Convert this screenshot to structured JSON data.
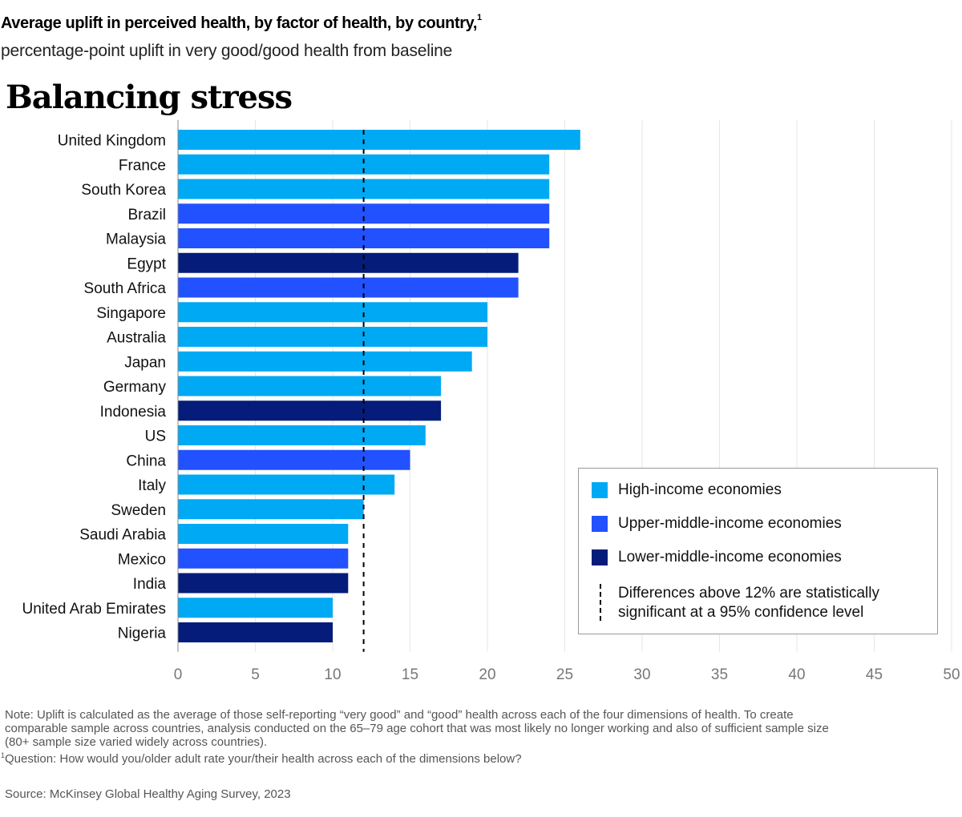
{
  "header": {
    "title": "Average uplift in perceived health, by factor of health, by country,",
    "title_footnote": "1",
    "subtitle": "percentage-point uplift in very good/good health from baseline",
    "heading": "Balancing stress"
  },
  "colors": {
    "high": "#00A9F4",
    "upper_middle": "#2251FF",
    "lower_middle": "#051C7A",
    "grid": "#E6E6E6",
    "axis": "#888888",
    "reference": "#000000"
  },
  "chart_data": {
    "type": "bar",
    "orientation": "horizontal",
    "title": "Balancing stress",
    "xlabel": "",
    "ylabel": "",
    "xlim": [
      0,
      50
    ],
    "x_ticks": [
      0,
      5,
      10,
      15,
      20,
      25,
      30,
      35,
      40,
      45,
      50
    ],
    "grid": true,
    "reference_line": {
      "value": 12,
      "style": "dashed",
      "label": "Differences above 12% are statistically significant at a 95% confidence level"
    },
    "categories": [
      "United Kingdom",
      "France",
      "South Korea",
      "Brazil",
      "Malaysia",
      "Egypt",
      "South Africa",
      "Singapore",
      "Australia",
      "Japan",
      "Germany",
      "Indonesia",
      "US",
      "China",
      "Italy",
      "Sweden",
      "Saudi Arabia",
      "Mexico",
      "India",
      "United Arab Emirates",
      "Nigeria"
    ],
    "values": [
      26,
      24,
      24,
      24,
      24,
      22,
      22,
      20,
      20,
      19,
      17,
      17,
      16,
      15,
      14,
      12,
      11,
      11,
      11,
      10,
      10
    ],
    "groups": [
      "high",
      "high",
      "high",
      "upper_middle",
      "upper_middle",
      "lower_middle",
      "upper_middle",
      "high",
      "high",
      "high",
      "high",
      "lower_middle",
      "high",
      "upper_middle",
      "high",
      "high",
      "high",
      "upper_middle",
      "lower_middle",
      "high",
      "lower_middle"
    ],
    "legend": {
      "placement": "bottom-right",
      "items": [
        {
          "key": "high",
          "label": "High-income economies"
        },
        {
          "key": "upper_middle",
          "label": "Upper-middle-income economies"
        },
        {
          "key": "lower_middle",
          "label": "Lower-middle-income economies"
        }
      ],
      "reference_label_line1": "Differences above 12% are statistically",
      "reference_label_line2": "significant at a 95% confidence level"
    }
  },
  "footer": {
    "note_line1": "Note: Uplift is calculated as the average of those self-reporting “very good” and “good” health across each of the four dimensions of health. To create",
    "note_line2": "comparable sample across countries, analysis conducted on the 65–79 age cohort that was most likely no longer working and also of sufficient sample size",
    "note_line3": "(80+ sample size varied widely across countries).",
    "question_marker": "1",
    "question": "Question: How would you/older adult rate your/their health across each of the dimensions below?",
    "source": "Source: McKinsey Global Healthy Aging Survey, 2023"
  }
}
